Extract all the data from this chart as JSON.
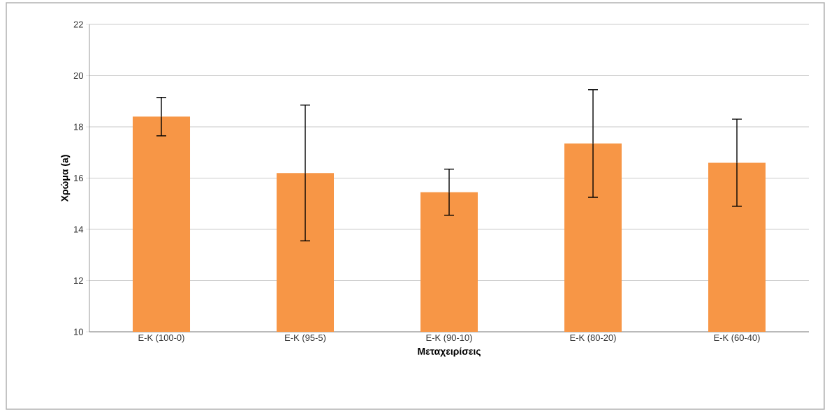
{
  "chart_data": {
    "type": "bar",
    "xlabel": "Μεταχειρίσεις",
    "ylabel": "Χρώμα (a)",
    "categories": [
      "E-K (100-0)",
      "E-K (95-5)",
      "E-K (90-10)",
      "E-K (80-20)",
      "E-K (60-40)"
    ],
    "values": [
      18.4,
      16.2,
      15.45,
      17.35,
      16.6
    ],
    "errors": [
      0.75,
      2.65,
      0.9,
      2.1,
      1.7
    ],
    "color": "#f79646",
    "ylim": [
      10,
      22
    ],
    "yticks": [
      10,
      12,
      14,
      16,
      18,
      20,
      22
    ],
    "grid": "y"
  }
}
